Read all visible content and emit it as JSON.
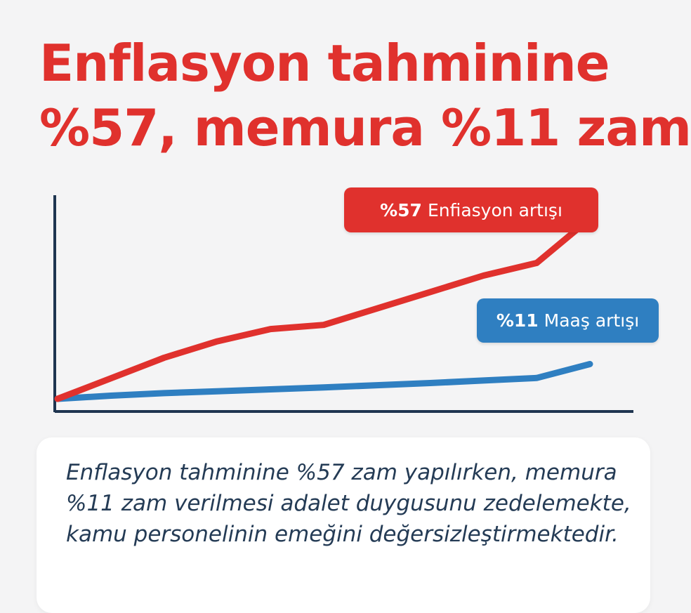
{
  "header": {
    "title_line1": "Enflasyon tahminine",
    "title_line2": "%57, memura %11 zam"
  },
  "chart_data": {
    "type": "line",
    "title": "",
    "xlabel": "",
    "ylabel": "",
    "grid": false,
    "x": [
      0,
      1,
      2,
      3,
      4,
      5,
      6,
      7,
      8,
      9,
      10
    ],
    "series": [
      {
        "name": "Enflasyon artışı",
        "color": "#e0312d",
        "values": [
          0,
          6.5,
          13.0,
          18.2,
          22.1,
          23.4,
          28.6,
          33.8,
          39.0,
          43.0,
          57.0
        ]
      },
      {
        "name": "Maaş artışı",
        "color": "#2f7fc1",
        "values": [
          0,
          1.0,
          1.8,
          2.4,
          3.0,
          3.6,
          4.3,
          5.0,
          5.8,
          6.6,
          11.0
        ]
      }
    ],
    "ylim": [
      0,
      60
    ],
    "axis_color": "#1f3550"
  },
  "labels": {
    "inflation_value": "%57",
    "inflation_text": "Enfiasyon artışı",
    "salary_value": "%11",
    "salary_text": "Maaş artışı"
  },
  "colors": {
    "accent_red": "#e0312d",
    "accent_blue": "#2f7fc1",
    "text_dark": "#243b55",
    "background": "#f4f4f5"
  },
  "card": {
    "text": "Enflasyon tahminine %57 zam yapılırken, memura %11 zam verilmesi adalet duygusunu zedelemekte, kamu personelinin emeğini değersizleştirmektedir."
  }
}
